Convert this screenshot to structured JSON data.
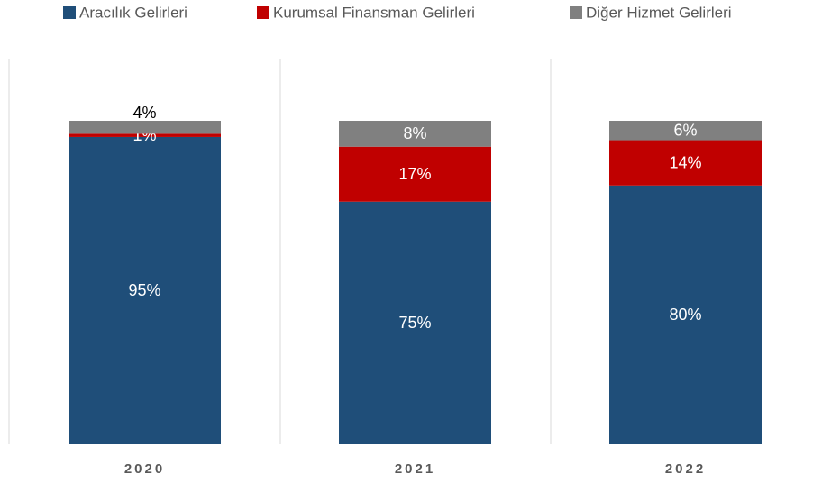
{
  "chart_data": {
    "type": "stacked-bar",
    "categories": [
      "2020",
      "2021",
      "2022"
    ],
    "ylim": [
      0,
      100
    ],
    "series": [
      {
        "name": "Aracılık Gelirleri",
        "color": "#1f4e79",
        "values": [
          95,
          75,
          80
        ],
        "value_labels": [
          "95%",
          "75%",
          "80%"
        ]
      },
      {
        "name": "Kurumsal Finansman Gelirleri",
        "color": "#c00000",
        "values": [
          1,
          17,
          14
        ],
        "value_labels": [
          "1%",
          "17%",
          "14%"
        ]
      },
      {
        "name": "Diğer Hizmet Gelirleri",
        "color": "#808080",
        "values": [
          4,
          8,
          6
        ],
        "value_labels": [
          "4%",
          "8%",
          "6%"
        ]
      }
    ]
  }
}
